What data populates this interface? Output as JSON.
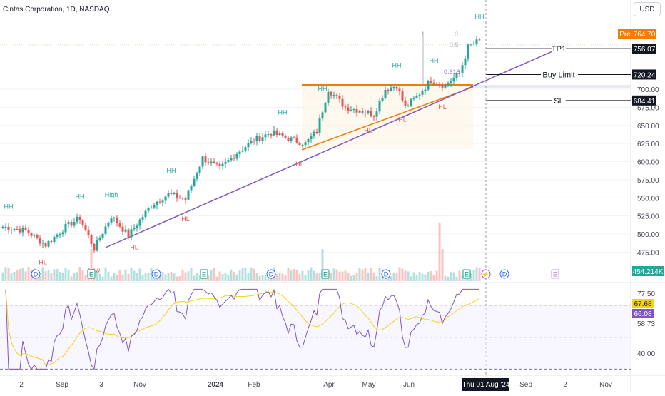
{
  "title": "Cintas Corporation, 1D, NASDAQ",
  "currency": "USD",
  "price_tags": {
    "pre_label": "Pre",
    "pre_price": "764.70",
    "tp1": "756.07",
    "buy_limit": "720.24",
    "sl": "684.41",
    "volume": "454.214K",
    "rsi_value": "67.68",
    "rsi_ma": "66.08"
  },
  "level_labels": {
    "tp1": "TP1",
    "buy_limit": "Buy Limit",
    "sl": "SL"
  },
  "fib_labels": [
    "0",
    "0.5",
    "0.618"
  ],
  "colors": {
    "up": "#26a69a",
    "down": "#ef5350",
    "trendline": "#7e57c2",
    "triangle": "#f57c00",
    "pre": "#f57c00",
    "rsi": "#7e57c2",
    "rsi_ma": "#f5d21a",
    "hh": "#26a69a",
    "hl": "#ef5350"
  },
  "chart_data": [
    {
      "type": "candlestick",
      "name": "price",
      "y_ticks": [
        "475.00",
        "500.00",
        "525.00",
        "550.00",
        "575.00",
        "600.00",
        "625.00",
        "650.00",
        "675.00",
        "700.00"
      ],
      "ylim": [
        460,
        785
      ],
      "x_ticks": [
        "2",
        "Sep",
        "3",
        "Nov",
        "2024",
        "Feb",
        "Apr",
        "May",
        "Jun",
        "Sep",
        "2",
        "Nov"
      ],
      "crosshair_date": "Thu 01 Aug '24",
      "anchors": [
        {
          "i": 0,
          "v": 510
        },
        {
          "i": 8,
          "v": 505
        },
        {
          "i": 15,
          "v": 485
        },
        {
          "i": 22,
          "v": 510
        },
        {
          "i": 27,
          "v": 522
        },
        {
          "i": 32,
          "v": 480
        },
        {
          "i": 38,
          "v": 525
        },
        {
          "i": 44,
          "v": 498
        },
        {
          "i": 52,
          "v": 540
        },
        {
          "i": 58,
          "v": 555
        },
        {
          "i": 64,
          "v": 548
        },
        {
          "i": 70,
          "v": 605
        },
        {
          "i": 76,
          "v": 590
        },
        {
          "i": 82,
          "v": 612
        },
        {
          "i": 88,
          "v": 630
        },
        {
          "i": 94,
          "v": 640
        },
        {
          "i": 100,
          "v": 632
        },
        {
          "i": 106,
          "v": 625
        },
        {
          "i": 110,
          "v": 642
        },
        {
          "i": 114,
          "v": 700
        },
        {
          "i": 120,
          "v": 675
        },
        {
          "i": 126,
          "v": 670
        },
        {
          "i": 130,
          "v": 665
        },
        {
          "i": 134,
          "v": 700
        },
        {
          "i": 138,
          "v": 705
        },
        {
          "i": 141,
          "v": 675
        },
        {
          "i": 145,
          "v": 690
        },
        {
          "i": 150,
          "v": 712
        },
        {
          "i": 155,
          "v": 705
        },
        {
          "i": 160,
          "v": 722
        },
        {
          "i": 163,
          "v": 758
        },
        {
          "i": 166,
          "v": 765
        }
      ],
      "levels": [
        {
          "name": "TP1",
          "value": 756.07
        },
        {
          "name": "Buy Limit",
          "value": 720.24
        },
        {
          "name": "SL",
          "value": 684.41
        }
      ],
      "annotations": [
        {
          "text": "HH",
          "i": 2,
          "kind": "hh"
        },
        {
          "text": "HL",
          "i": 14,
          "kind": "hl"
        },
        {
          "text": "HH",
          "i": 27,
          "kind": "hh"
        },
        {
          "text": "Low",
          "i": 32,
          "kind": "hl"
        },
        {
          "text": "High",
          "i": 38,
          "kind": "hh"
        },
        {
          "text": "HL",
          "i": 46,
          "kind": "hl"
        },
        {
          "text": "HH",
          "i": 59,
          "kind": "hh"
        },
        {
          "text": "HL",
          "i": 64,
          "kind": "hl"
        },
        {
          "text": "HH",
          "i": 98,
          "kind": "hh"
        },
        {
          "text": "HL",
          "i": 104,
          "kind": "hl"
        },
        {
          "text": "HH",
          "i": 112,
          "kind": "hh"
        },
        {
          "text": "HL",
          "i": 128,
          "kind": "hl"
        },
        {
          "text": "HH",
          "i": 138,
          "kind": "hh"
        },
        {
          "text": "HL",
          "i": 140,
          "kind": "hl"
        },
        {
          "text": "HH",
          "i": 151,
          "kind": "hh"
        },
        {
          "text": "HL",
          "i": 154,
          "kind": "hl"
        },
        {
          "text": "HH",
          "i": 167,
          "kind": "hh"
        }
      ],
      "event_markers": [
        {
          "text": "D",
          "kind": "dividend"
        },
        {
          "text": "E",
          "kind": "earnings"
        },
        {
          "text": "D",
          "kind": "dividend"
        },
        {
          "text": "E",
          "kind": "earnings"
        },
        {
          "text": "D",
          "kind": "dividend"
        },
        {
          "text": "E",
          "kind": "earnings"
        },
        {
          "text": "D",
          "kind": "dividend"
        },
        {
          "text": "E",
          "kind": "earnings"
        },
        {
          "text": "⚡",
          "kind": "split"
        },
        {
          "text": "D",
          "kind": "dividend"
        },
        {
          "text": "E",
          "kind": "earnings"
        }
      ]
    },
    {
      "type": "line",
      "name": "RSI",
      "y_ticks": [
        "77.50",
        "58.73",
        "40.00"
      ],
      "ylim": [
        28,
        85
      ],
      "bands": [
        30,
        50,
        70
      ]
    }
  ]
}
